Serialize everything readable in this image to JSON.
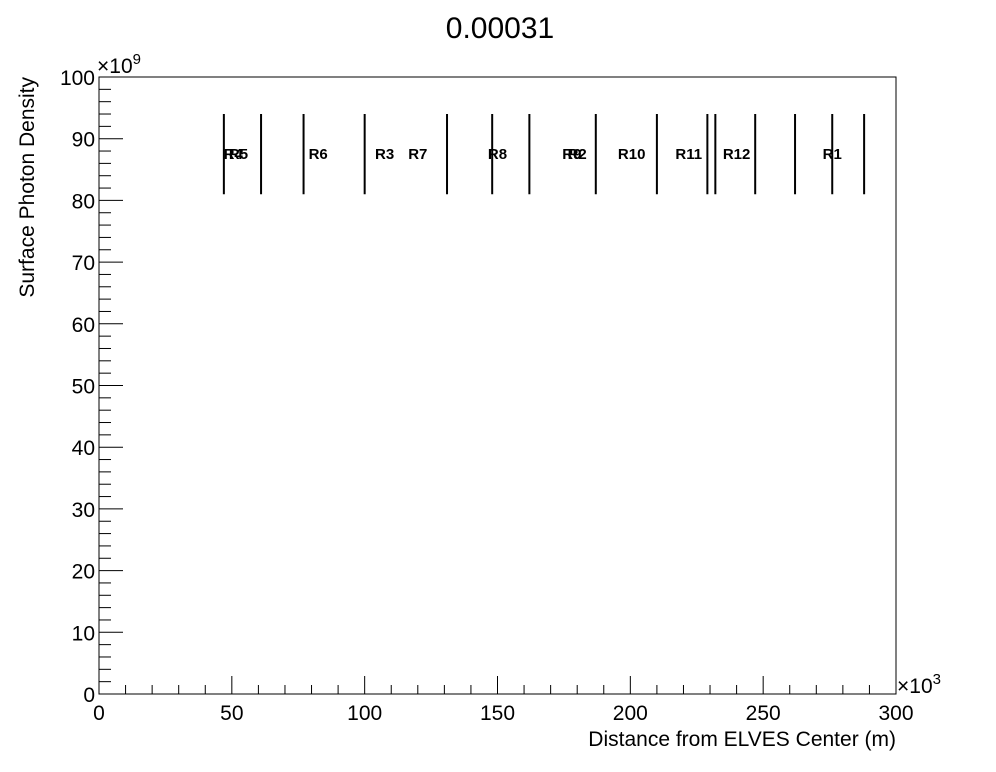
{
  "chart_data": {
    "type": "scatter",
    "title": "0.00031",
    "xlabel": "Distance from ELVES Center (m)",
    "ylabel": "Surface Photon Density",
    "x_multiplier": "×10",
    "x_exponent": "3",
    "y_multiplier": "×10",
    "y_exponent": "9",
    "xlim": [
      0,
      300
    ],
    "ylim": [
      0,
      100
    ],
    "x_ticks": [
      0,
      50,
      100,
      150,
      200,
      250,
      300
    ],
    "x_tick_labels": [
      "0",
      "50",
      "100",
      "150",
      "200",
      "250",
      "300"
    ],
    "y_ticks": [
      0,
      10,
      20,
      30,
      40,
      50,
      60,
      70,
      80,
      90,
      100
    ],
    "y_tick_labels": [
      "0",
      "10",
      "20",
      "30",
      "40",
      "50",
      "60",
      "70",
      "80",
      "90",
      "100"
    ],
    "boundary_lines": [
      47,
      61,
      77,
      100,
      131,
      148,
      162,
      187,
      210,
      229,
      232,
      247,
      262,
      276,
      288
    ],
    "boundary_y_range": [
      81,
      94
    ],
    "region_labels": [
      {
        "text": "R4",
        "x": 50.5
      },
      {
        "text": "R5",
        "x": 52.5
      },
      {
        "text": "R6",
        "x": 82.5
      },
      {
        "text": "R3",
        "x": 107.5
      },
      {
        "text": "R7",
        "x": 120
      },
      {
        "text": "R8",
        "x": 150
      },
      {
        "text": "R9",
        "x": 178
      },
      {
        "text": "R2",
        "x": 180
      },
      {
        "text": "R10",
        "x": 200.5
      },
      {
        "text": "R11",
        "x": 222
      },
      {
        "text": "R12",
        "x": 240
      },
      {
        "text": "R1",
        "x": 276
      }
    ],
    "region_label_y": 87.5,
    "grid": false,
    "line_color": "#000000"
  }
}
